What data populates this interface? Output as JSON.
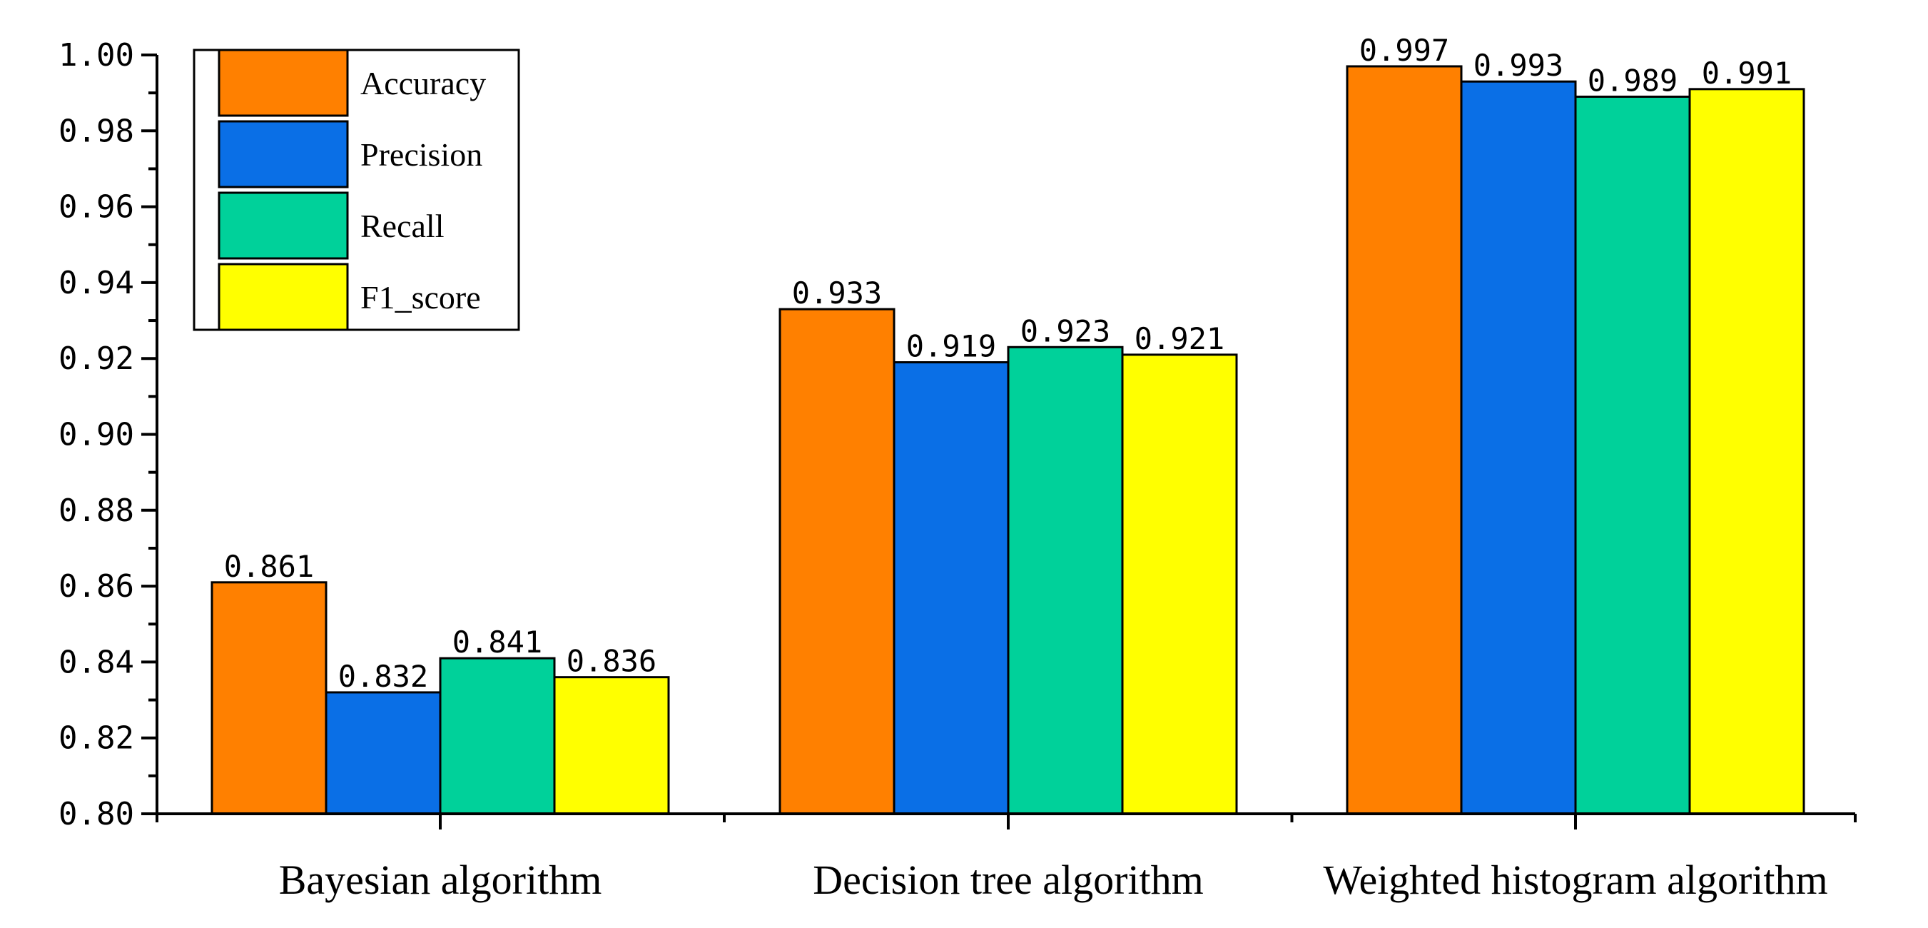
{
  "chart_data": {
    "type": "bar",
    "categories": [
      "Bayesian algorithm",
      "Decision tree algorithm",
      "Weighted histogram algorithm"
    ],
    "series": [
      {
        "name": "Accuracy",
        "color": "#FF8000",
        "values": [
          0.861,
          0.933,
          0.997
        ],
        "labels": [
          "0.861",
          "0.933",
          "0.997"
        ]
      },
      {
        "name": "Precision",
        "color": "#0A6FE6",
        "values": [
          0.832,
          0.919,
          0.993
        ],
        "labels": [
          "0.832",
          "0.919",
          "0.993"
        ]
      },
      {
        "name": "Recall",
        "color": "#00D19A",
        "values": [
          0.841,
          0.923,
          0.989
        ],
        "labels": [
          "0.841",
          "0.923",
          "0.989"
        ]
      },
      {
        "name": "F1_score",
        "color": "#FFFF00",
        "values": [
          0.836,
          0.921,
          0.991
        ],
        "labels": [
          "0.836",
          "0.921",
          "0.991"
        ]
      }
    ],
    "ylim": [
      0.8,
      1.0
    ],
    "yticks": [
      0.8,
      0.82,
      0.84,
      0.86,
      0.88,
      0.9,
      0.92,
      0.94,
      0.96,
      0.98,
      1.0
    ],
    "ytick_labels": [
      "0.80",
      "0.82",
      "0.84",
      "0.86",
      "0.88",
      "0.90",
      "0.92",
      "0.94",
      "0.96",
      "0.98",
      "1.00"
    ],
    "title": "",
    "xlabel": "",
    "ylabel": "",
    "legend": "top-left",
    "grid": false
  }
}
